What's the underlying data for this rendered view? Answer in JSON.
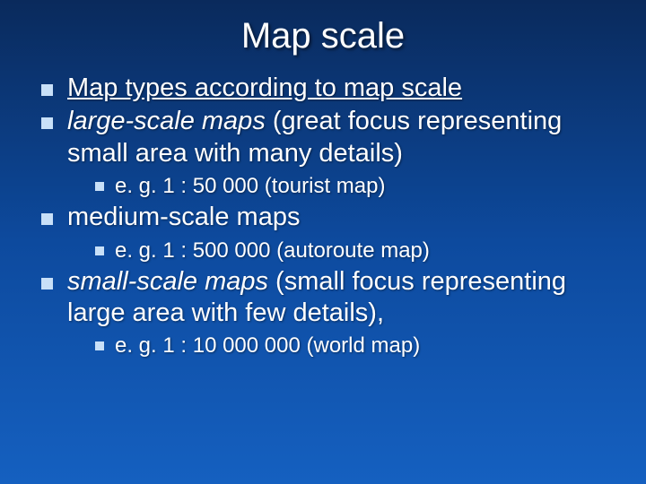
{
  "background_gradient": [
    "#0a2a5c",
    "#0d4a9e",
    "#1560c0"
  ],
  "bullet_color": "#c8e0f8",
  "text_color": "#ffffff",
  "title": "Map scale",
  "title_fontsize": 40,
  "body_fontsize_l1": 29,
  "body_fontsize_l2": 24,
  "items": [
    {
      "level": 1,
      "style": "underline",
      "text": "Map types according to map scale"
    },
    {
      "level": 1,
      "style": "none",
      "runs": [
        {
          "text": "large-scale maps",
          "italic": true
        },
        {
          "text": " (great focus representing small area with many details)",
          "italic": false
        }
      ]
    },
    {
      "level": 2,
      "style": "none",
      "text": "e. g. 1 : 50 000 (tourist map)"
    },
    {
      "level": 1,
      "style": "none",
      "text": "medium-scale maps"
    },
    {
      "level": 2,
      "style": "none",
      "text": "e. g. 1 : 500 000 (autoroute map)"
    },
    {
      "level": 1,
      "style": "none",
      "runs": [
        {
          "text": "small-scale maps",
          "italic": true
        },
        {
          "text": " (small focus representing large area with few details),",
          "italic": false
        }
      ]
    },
    {
      "level": 2,
      "style": "none",
      "text": "e. g. 1 : 10 000 000 (world map)"
    }
  ]
}
